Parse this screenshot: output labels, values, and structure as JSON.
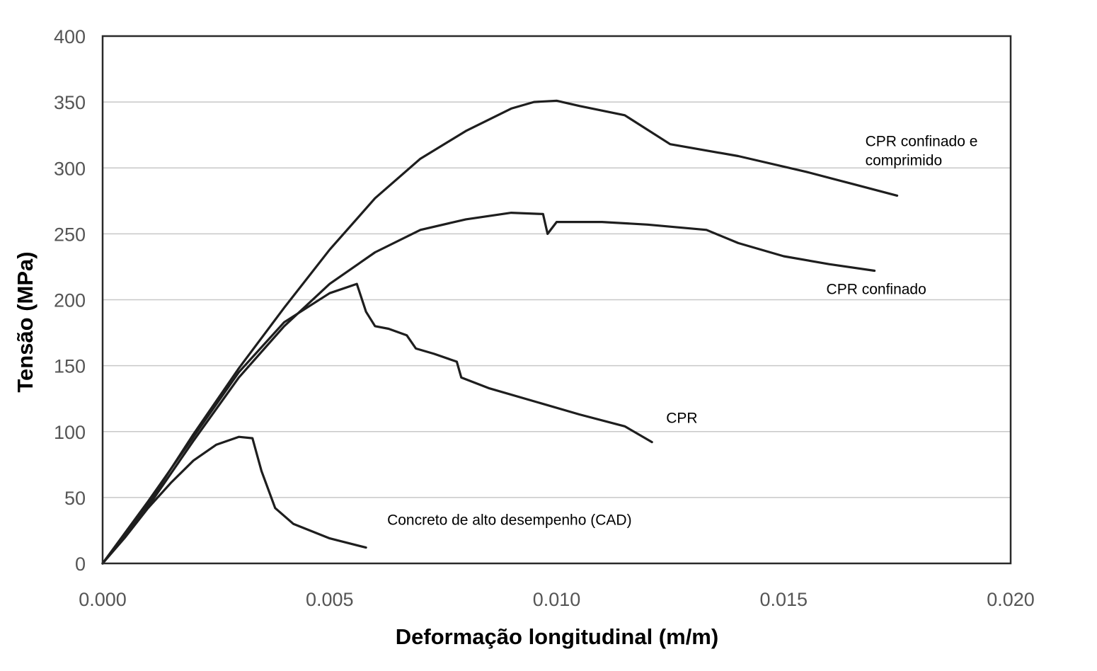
{
  "chart_data": {
    "type": "line",
    "xlabel": "Deformação longitudinal (m/m)",
    "ylabel": "Tensão (MPa)",
    "xlim": [
      0,
      0.02
    ],
    "ylim": [
      0,
      400
    ],
    "x_ticks": [
      "0.000",
      "0.005",
      "0.010",
      "0.015",
      "0.020"
    ],
    "y_ticks": [
      "0",
      "50",
      "100",
      "150",
      "200",
      "250",
      "300",
      "350",
      "400"
    ],
    "grid": "horizontal",
    "legend": "none",
    "series": [
      {
        "name": "CPR confinado e comprimido",
        "x": [
          0,
          0.001,
          0.002,
          0.003,
          0.004,
          0.005,
          0.006,
          0.007,
          0.008,
          0.009,
          0.0095,
          0.01,
          0.0105,
          0.0115,
          0.0125,
          0.014,
          0.0155,
          0.0165,
          0.0175
        ],
        "y": [
          0,
          45,
          98,
          148,
          194,
          238,
          277,
          307,
          328,
          345,
          350,
          351,
          347,
          340,
          318,
          309,
          297,
          288,
          279
        ]
      },
      {
        "name": "CPR confinado",
        "x": [
          0,
          0.001,
          0.002,
          0.003,
          0.004,
          0.005,
          0.006,
          0.007,
          0.008,
          0.009,
          0.0097,
          0.0098,
          0.01,
          0.011,
          0.012,
          0.0133,
          0.014,
          0.015,
          0.016,
          0.017
        ],
        "y": [
          0,
          43,
          93,
          141,
          180,
          212,
          236,
          253,
          261,
          266,
          265,
          250,
          259,
          259,
          257,
          253,
          243,
          233,
          227,
          222
        ]
      },
      {
        "name": "CPR",
        "x": [
          0,
          0.001,
          0.002,
          0.003,
          0.004,
          0.005,
          0.0056,
          0.0058,
          0.006,
          0.0063,
          0.0067,
          0.0069,
          0.0073,
          0.0078,
          0.0079,
          0.0085,
          0.0095,
          0.0105,
          0.0115,
          0.0121
        ],
        "y": [
          0,
          47,
          96,
          145,
          183,
          205,
          212,
          191,
          180,
          178,
          173,
          163,
          159,
          153,
          141,
          133,
          123,
          113,
          104,
          92
        ]
      },
      {
        "name": "Concreto de alto desempenho (CAD)",
        "x": [
          0,
          0.0005,
          0.001,
          0.0015,
          0.002,
          0.0025,
          0.003,
          0.0033,
          0.0035,
          0.0038,
          0.0042,
          0.005,
          0.0058
        ],
        "y": [
          0,
          20,
          42,
          61,
          78,
          90,
          96,
          95,
          70,
          42,
          30,
          19,
          12
        ]
      }
    ],
    "annotations": [
      {
        "series": 0,
        "lines": [
          "CPR confinado e",
          "comprimido"
        ]
      },
      {
        "series": 1,
        "lines": [
          "CPR confinado"
        ]
      },
      {
        "series": 2,
        "lines": [
          "CPR"
        ]
      },
      {
        "series": 3,
        "lines": [
          "Concreto de alto desempenho (CAD)"
        ]
      }
    ]
  }
}
